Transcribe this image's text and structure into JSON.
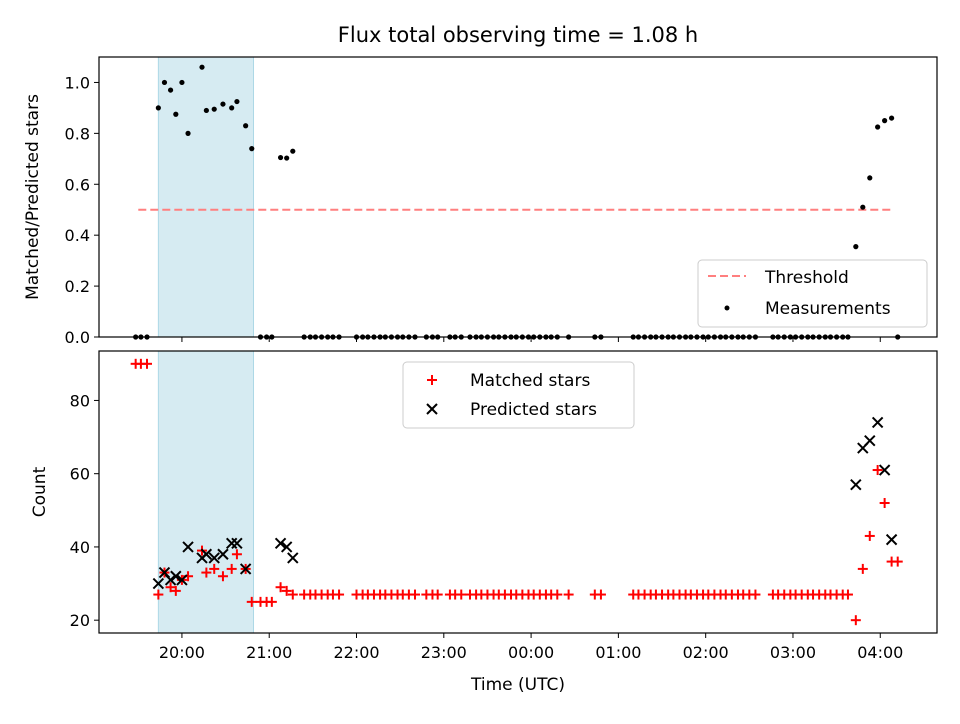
{
  "figure": {
    "title": "Flux total observing time = 1.08 h",
    "xlabel": "Time (UTC)"
  },
  "top": {
    "ylabel": "Matched/Predicted stars",
    "yticks": [
      "0.0",
      "0.2",
      "0.4",
      "0.6",
      "0.8",
      "1.0"
    ],
    "legend": {
      "threshold": "Threshold",
      "measurements": "Measurements"
    }
  },
  "bottom": {
    "ylabel": "Count",
    "yticks": [
      "20",
      "40",
      "60",
      "80"
    ],
    "legend": {
      "matched": "Matched stars",
      "predicted": "Predicted stars"
    }
  },
  "xticks": [
    "20:00",
    "21:00",
    "22:00",
    "23:00",
    "00:00",
    "01:00",
    "02:00",
    "03:00",
    "04:00"
  ],
  "colors": {
    "threshold": "#ff7f7f",
    "measurements": "#000000",
    "matched": "#ff0000",
    "predicted": "#000000",
    "shaded_span": "#add8e6"
  },
  "chart_data": [
    {
      "type": "scatter",
      "subplot": "top",
      "ylabel": "Matched/Predicted stars",
      "xlabel": "",
      "x_unit": "hours since 20:00 UTC",
      "ylim": [
        0.0,
        1.1
      ],
      "xlim": [
        -0.95,
        8.65
      ],
      "shaded_span": [
        -0.27,
        0.82
      ],
      "threshold": {
        "name": "Threshold",
        "y": 0.5,
        "x_range": [
          -0.5,
          8.15
        ],
        "style": "dashed"
      },
      "series": [
        {
          "name": "Measurements",
          "points": [
            [
              -0.53,
              0
            ],
            [
              -0.47,
              0
            ],
            [
              -0.4,
              0
            ],
            [
              -0.27,
              0.9
            ],
            [
              -0.2,
              1.0
            ],
            [
              -0.13,
              0.97
            ],
            [
              -0.07,
              0.875
            ],
            [
              0.0,
              1.0
            ],
            [
              0.07,
              0.8
            ],
            [
              0.23,
              1.06
            ],
            [
              0.28,
              0.89
            ],
            [
              0.37,
              0.895
            ],
            [
              0.47,
              0.915
            ],
            [
              0.57,
              0.9
            ],
            [
              0.63,
              0.925
            ],
            [
              0.73,
              0.83
            ],
            [
              0.8,
              0.74
            ],
            [
              0.9,
              0
            ],
            [
              0.97,
              0
            ],
            [
              1.03,
              0
            ],
            [
              1.13,
              0.705
            ],
            [
              1.2,
              0.703
            ],
            [
              1.27,
              0.73
            ],
            [
              1.4,
              0
            ],
            [
              1.47,
              0
            ],
            [
              1.53,
              0
            ],
            [
              1.6,
              0
            ],
            [
              1.67,
              0
            ],
            [
              1.73,
              0
            ],
            [
              1.8,
              0
            ],
            [
              2.0,
              0
            ],
            [
              2.07,
              0
            ],
            [
              2.13,
              0
            ],
            [
              2.2,
              0
            ],
            [
              2.27,
              0
            ],
            [
              2.33,
              0
            ],
            [
              2.4,
              0
            ],
            [
              2.47,
              0
            ],
            [
              2.53,
              0
            ],
            [
              2.6,
              0
            ],
            [
              2.67,
              0
            ],
            [
              2.8,
              0
            ],
            [
              2.87,
              0
            ],
            [
              2.93,
              0
            ],
            [
              3.07,
              0
            ],
            [
              3.13,
              0
            ],
            [
              3.2,
              0
            ],
            [
              3.3,
              0
            ],
            [
              3.37,
              0
            ],
            [
              3.43,
              0
            ],
            [
              3.5,
              0
            ],
            [
              3.57,
              0
            ],
            [
              3.63,
              0
            ],
            [
              3.7,
              0
            ],
            [
              3.77,
              0
            ],
            [
              3.83,
              0
            ],
            [
              3.9,
              0
            ],
            [
              3.97,
              0
            ],
            [
              4.03,
              0
            ],
            [
              4.1,
              0
            ],
            [
              4.17,
              0
            ],
            [
              4.23,
              0
            ],
            [
              4.3,
              0
            ],
            [
              4.43,
              0
            ],
            [
              4.73,
              0
            ],
            [
              4.8,
              0
            ],
            [
              5.17,
              0
            ],
            [
              5.23,
              0
            ],
            [
              5.3,
              0
            ],
            [
              5.37,
              0
            ],
            [
              5.43,
              0
            ],
            [
              5.5,
              0
            ],
            [
              5.57,
              0
            ],
            [
              5.63,
              0
            ],
            [
              5.7,
              0
            ],
            [
              5.77,
              0
            ],
            [
              5.83,
              0
            ],
            [
              5.9,
              0
            ],
            [
              5.97,
              0
            ],
            [
              6.03,
              0
            ],
            [
              6.1,
              0
            ],
            [
              6.17,
              0
            ],
            [
              6.23,
              0
            ],
            [
              6.3,
              0
            ],
            [
              6.37,
              0
            ],
            [
              6.43,
              0
            ],
            [
              6.5,
              0
            ],
            [
              6.57,
              0
            ],
            [
              6.77,
              0
            ],
            [
              6.83,
              0
            ],
            [
              6.9,
              0
            ],
            [
              6.97,
              0
            ],
            [
              7.03,
              0
            ],
            [
              7.1,
              0
            ],
            [
              7.17,
              0
            ],
            [
              7.23,
              0
            ],
            [
              7.3,
              0
            ],
            [
              7.37,
              0
            ],
            [
              7.43,
              0
            ],
            [
              7.5,
              0
            ],
            [
              7.57,
              0
            ],
            [
              7.63,
              0
            ],
            [
              7.72,
              0.355
            ],
            [
              7.8,
              0.51
            ],
            [
              7.88,
              0.625
            ],
            [
              7.97,
              0.825
            ],
            [
              8.05,
              0.85
            ],
            [
              8.13,
              0.86
            ],
            [
              8.2,
              0
            ]
          ]
        }
      ]
    },
    {
      "type": "scatter",
      "subplot": "bottom",
      "ylabel": "Count",
      "xlabel": "Time (UTC)",
      "x_unit": "hours since 20:00 UTC",
      "ylim": [
        16.5,
        93.5
      ],
      "xlim": [
        -0.95,
        8.65
      ],
      "shaded_span": [
        -0.27,
        0.82
      ],
      "series": [
        {
          "name": "Matched stars",
          "marker": "plus",
          "points": [
            [
              -0.53,
              90
            ],
            [
              -0.47,
              90
            ],
            [
              -0.4,
              90
            ],
            [
              -0.27,
              27
            ],
            [
              -0.2,
              33
            ],
            [
              -0.13,
              29
            ],
            [
              -0.07,
              28
            ],
            [
              0.0,
              31
            ],
            [
              0.07,
              32
            ],
            [
              0.23,
              39
            ],
            [
              0.28,
              33
            ],
            [
              0.37,
              34
            ],
            [
              0.47,
              32
            ],
            [
              0.57,
              34
            ],
            [
              0.63,
              38
            ],
            [
              0.73,
              34
            ],
            [
              0.8,
              25
            ],
            [
              0.9,
              25
            ],
            [
              0.97,
              25
            ],
            [
              1.03,
              25
            ],
            [
              1.13,
              29
            ],
            [
              1.2,
              28
            ],
            [
              1.27,
              27
            ],
            [
              1.4,
              27
            ],
            [
              1.47,
              27
            ],
            [
              1.53,
              27
            ],
            [
              1.6,
              27
            ],
            [
              1.67,
              27
            ],
            [
              1.73,
              27
            ],
            [
              1.8,
              27
            ],
            [
              2.0,
              27
            ],
            [
              2.07,
              27
            ],
            [
              2.13,
              27
            ],
            [
              2.2,
              27
            ],
            [
              2.27,
              27
            ],
            [
              2.33,
              27
            ],
            [
              2.4,
              27
            ],
            [
              2.47,
              27
            ],
            [
              2.53,
              27
            ],
            [
              2.6,
              27
            ],
            [
              2.67,
              27
            ],
            [
              2.8,
              27
            ],
            [
              2.87,
              27
            ],
            [
              2.93,
              27
            ],
            [
              3.07,
              27
            ],
            [
              3.13,
              27
            ],
            [
              3.2,
              27
            ],
            [
              3.3,
              27
            ],
            [
              3.37,
              27
            ],
            [
              3.43,
              27
            ],
            [
              3.5,
              27
            ],
            [
              3.57,
              27
            ],
            [
              3.63,
              27
            ],
            [
              3.7,
              27
            ],
            [
              3.77,
              27
            ],
            [
              3.83,
              27
            ],
            [
              3.9,
              27
            ],
            [
              3.97,
              27
            ],
            [
              4.03,
              27
            ],
            [
              4.1,
              27
            ],
            [
              4.17,
              27
            ],
            [
              4.23,
              27
            ],
            [
              4.3,
              27
            ],
            [
              4.43,
              27
            ],
            [
              4.73,
              27
            ],
            [
              4.8,
              27
            ],
            [
              5.17,
              27
            ],
            [
              5.23,
              27
            ],
            [
              5.3,
              27
            ],
            [
              5.37,
              27
            ],
            [
              5.43,
              27
            ],
            [
              5.5,
              27
            ],
            [
              5.57,
              27
            ],
            [
              5.63,
              27
            ],
            [
              5.7,
              27
            ],
            [
              5.77,
              27
            ],
            [
              5.83,
              27
            ],
            [
              5.9,
              27
            ],
            [
              5.97,
              27
            ],
            [
              6.03,
              27
            ],
            [
              6.1,
              27
            ],
            [
              6.17,
              27
            ],
            [
              6.23,
              27
            ],
            [
              6.3,
              27
            ],
            [
              6.37,
              27
            ],
            [
              6.43,
              27
            ],
            [
              6.5,
              27
            ],
            [
              6.57,
              27
            ],
            [
              6.77,
              27
            ],
            [
              6.83,
              27
            ],
            [
              6.9,
              27
            ],
            [
              6.97,
              27
            ],
            [
              7.03,
              27
            ],
            [
              7.1,
              27
            ],
            [
              7.17,
              27
            ],
            [
              7.23,
              27
            ],
            [
              7.3,
              27
            ],
            [
              7.37,
              27
            ],
            [
              7.43,
              27
            ],
            [
              7.5,
              27
            ],
            [
              7.57,
              27
            ],
            [
              7.63,
              27
            ],
            [
              7.72,
              20
            ],
            [
              7.8,
              34
            ],
            [
              7.88,
              43
            ],
            [
              7.97,
              61
            ],
            [
              8.05,
              52
            ],
            [
              8.13,
              36
            ],
            [
              8.2,
              36
            ]
          ]
        },
        {
          "name": "Predicted stars",
          "marker": "x",
          "points": [
            [
              -0.27,
              30
            ],
            [
              -0.2,
              33
            ],
            [
              -0.13,
              31
            ],
            [
              -0.07,
              32
            ],
            [
              0.0,
              31
            ],
            [
              0.07,
              40
            ],
            [
              0.23,
              37
            ],
            [
              0.28,
              38
            ],
            [
              0.37,
              37
            ],
            [
              0.47,
              38
            ],
            [
              0.57,
              41
            ],
            [
              0.63,
              41
            ],
            [
              0.73,
              34
            ],
            [
              1.13,
              41
            ],
            [
              1.2,
              40
            ],
            [
              1.27,
              37
            ],
            [
              7.72,
              57
            ],
            [
              7.8,
              67
            ],
            [
              7.88,
              69
            ],
            [
              7.97,
              74
            ],
            [
              8.05,
              61
            ],
            [
              8.13,
              42
            ]
          ]
        }
      ]
    }
  ]
}
